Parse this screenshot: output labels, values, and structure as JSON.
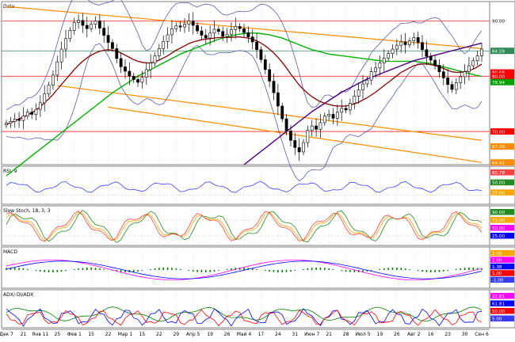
{
  "chart_data": {
    "type": "candlestick",
    "x_ticks": [
      "Дек 7",
      "21",
      "Янв 11",
      "25",
      "Фев 1",
      "15",
      "22",
      "Мар 1",
      "15",
      "22",
      "29",
      "Апр 5",
      "19",
      "26",
      "Май 4",
      "17",
      "24",
      "31",
      "Июн 7",
      "21",
      "28",
      "Июл 5",
      "19",
      "26",
      "Авг 2",
      "16",
      "23",
      "30",
      "Сен 6"
    ],
    "close_series": [
      71.5,
      71.8,
      72.2,
      72.0,
      72.8,
      73.5,
      73.1,
      74.0,
      75.2,
      76.8,
      78.4,
      80.2,
      82.6,
      84.9,
      86.8,
      88.3,
      89.7,
      90.1,
      89.2,
      88.6,
      89.4,
      90.0,
      88.7,
      87.4,
      86.1,
      85.0,
      83.2,
      81.7,
      80.9,
      80.0,
      79.4,
      78.9,
      79.8,
      81.2,
      82.4,
      83.7,
      85.0,
      86.3,
      87.5,
      88.6,
      89.1,
      88.9,
      89.4,
      90.0,
      89.2,
      88.2,
      87.4,
      86.9,
      87.8,
      88.5,
      88.1,
      87.2,
      87.6,
      88.4,
      89.0,
      88.6,
      87.9,
      87.1,
      86.2,
      84.8,
      83.0,
      81.2,
      79.1,
      77.0,
      74.6,
      72.3,
      70.1,
      68.4,
      67.1,
      66.3,
      68.0,
      70.2,
      71.0,
      70.4,
      71.6,
      72.8,
      73.1,
      72.4,
      73.5,
      74.2,
      73.9,
      75.1,
      76.4,
      77.5,
      78.6,
      79.3,
      80.8,
      81.5,
      82.4,
      83.3,
      84.1,
      84.9,
      85.6,
      86.2,
      85.7,
      86.4,
      87.0,
      86.1,
      84.8,
      83.6,
      82.9,
      82.0,
      80.8,
      79.7,
      78.5,
      77.6,
      78.8,
      79.9,
      80.8,
      81.9,
      82.8,
      83.7,
      84.9
    ],
    "series": [
      {
        "name": "",
        "values": [
          71.2,
          71.6,
          71.9,
          72.3,
          72.6,
          73.0,
          73.4,
          73.9,
          74.5,
          75.2,
          75.9,
          76.7,
          77.6,
          78.5,
          79.4,
          80.3,
          81.2,
          82.0,
          82.7,
          83.3,
          83.8,
          84.2,
          84.5,
          84.7,
          84.8,
          84.7,
          84.5,
          84.2,
          83.8,
          83.4,
          83.0,
          82.7,
          82.5,
          82.4,
          82.4,
          82.6,
          82.9,
          83.3,
          83.7,
          84.2,
          84.7,
          85.1,
          85.5,
          85.9,
          86.2,
          86.4,
          86.6,
          86.7,
          86.8,
          86.9,
          87.0,
          87.0,
          87.0,
          87.0,
          87.1,
          87.1,
          87.0,
          86.9,
          86.7,
          86.4,
          86.0,
          85.5,
          84.9,
          84.2,
          83.4,
          82.5,
          81.5,
          80.4,
          79.4,
          78.4,
          77.6,
          76.9,
          76.3,
          75.8,
          75.4,
          75.1,
          74.9,
          74.7,
          74.6,
          74.6,
          74.6,
          74.8,
          75.0,
          75.3,
          75.7,
          76.1,
          76.6,
          77.1,
          77.7,
          78.3,
          78.9,
          79.5,
          80.1,
          80.7,
          81.1,
          81.5,
          81.9,
          82.1,
          82.2,
          82.2,
          82.1,
          81.9,
          81.7,
          81.4,
          81.1,
          80.8,
          80.7,
          80.7,
          80.8,
          81.0,
          81.3,
          81.7,
          82.2
        ]
      },
      {
        "name": "",
        "values": [
          62.0,
          62.6,
          63.2,
          63.8,
          64.4,
          65.0,
          65.6,
          66.2,
          66.8,
          67.4,
          68.0,
          68.6,
          69.2,
          69.8,
          70.4,
          71.0,
          71.6,
          72.2,
          72.8,
          73.4,
          74.0,
          74.6,
          75.2,
          75.8,
          76.4,
          77.0,
          77.5,
          78.0,
          78.5,
          79.0,
          79.5,
          80.0,
          80.4,
          80.8,
          81.2,
          81.6,
          82.0,
          82.4,
          82.8,
          83.2,
          83.6,
          84.0,
          84.3,
          84.6,
          84.9,
          85.2,
          85.5,
          85.8,
          86.1,
          86.4,
          86.7,
          86.9,
          87.1,
          87.3,
          87.5,
          87.6,
          87.7,
          87.8,
          87.8,
          87.8,
          87.7,
          87.6,
          87.5,
          87.3,
          87.1,
          86.9,
          86.6,
          86.3,
          86.0,
          85.7,
          85.4,
          85.1,
          84.8,
          84.6,
          84.4,
          84.2,
          84.0,
          83.9,
          83.8,
          83.7,
          83.6,
          83.5,
          83.4,
          83.3,
          83.2,
          83.1,
          83.0,
          82.9,
          82.8,
          82.7,
          82.7,
          82.7,
          82.7,
          82.7,
          82.7,
          82.7,
          82.7,
          82.6,
          82.5,
          82.4,
          82.3,
          82.1,
          81.9,
          81.7,
          81.5,
          81.3,
          81.1,
          80.9,
          80.7,
          80.5,
          80.3,
          80.1,
          80.0
        ]
      },
      {
        "name": "",
        "values": [
          null,
          null,
          null,
          null,
          null,
          null,
          null,
          null,
          null,
          null,
          null,
          null,
          null,
          null,
          null,
          null,
          null,
          null,
          null,
          null,
          null,
          null,
          null,
          null,
          null,
          null,
          null,
          null,
          null,
          null,
          null,
          null,
          null,
          null,
          null,
          null,
          null,
          null,
          null,
          null,
          null,
          null,
          null,
          null,
          null,
          null,
          null,
          null,
          null,
          null,
          null,
          null,
          null,
          null,
          null,
          null,
          64.0,
          64.6,
          65.2,
          65.8,
          66.4,
          67.0,
          67.6,
          68.2,
          68.8,
          69.4,
          70.0,
          70.6,
          71.2,
          71.8,
          72.4,
          73.0,
          73.6,
          74.1,
          74.6,
          75.1,
          75.6,
          76.1,
          76.6,
          77.1,
          77.5,
          77.9,
          78.3,
          78.7,
          79.1,
          79.5,
          79.8,
          80.1,
          80.4,
          80.7,
          81.0,
          81.3,
          81.6,
          81.9,
          82.2,
          82.5,
          82.8,
          83.0,
          83.2,
          83.4,
          83.6,
          83.8,
          84.0,
          84.2,
          84.4,
          84.6,
          84.8,
          85.0,
          85.2,
          85.4,
          85.6,
          85.8,
          86.0
        ]
      }
    ],
    "price_axis": {
      "min": 64.0,
      "max": 93.5,
      "labels": [
        "90.00",
        "84.59",
        "80.68",
        "80.00",
        "78.94",
        "70.00",
        "67.29",
        "64.41"
      ]
    },
    "price_levels": [
      90.0,
      80.0,
      70.0,
      84.59
    ],
    "channel_lines": [
      {
        "from": [
          0,
          92.6
        ],
        "to": [
          112,
          85.0
        ]
      },
      {
        "from": [
          12,
          78.3
        ],
        "to": [
          112,
          68.4
        ]
      },
      {
        "from": [
          24,
          74.4
        ],
        "to": [
          112,
          64.4
        ]
      }
    ],
    "panels": [
      {
        "title": "Data"
      },
      {
        "title": "RSI, 9",
        "labels": [
          "60.78",
          "50.00",
          "25.00"
        ],
        "range": [
          0,
          100
        ]
      },
      {
        "title": "Slow Stoch, 18, 3, 3",
        "labels": [
          "90.00",
          "75.00",
          "50.00",
          "25.00"
        ],
        "range": [
          0,
          100
        ]
      },
      {
        "title": "MACD",
        "labels": [
          "2.00",
          "1.00",
          "1.38",
          "1.00",
          "-1.00"
        ],
        "range": [
          -3,
          3
        ]
      },
      {
        "title": "ADX/-DI/ADX",
        "labels": [
          "22.81",
          "61.81",
          "50.00",
          "5.00"
        ],
        "range": [
          0,
          100
        ]
      }
    ],
    "colors": {
      "candle": "#000000",
      "band": "#5b5bb5",
      "ma_short": "#8b0000",
      "ma_long": "#00b200",
      "ma_extra": "#4b0082",
      "channel": "#ff8c00",
      "level": "#ff0000",
      "level_green": "#2e8b57",
      "rsi": "#3a3aff",
      "stoch_k": "#ff4040",
      "stoch_d": "#228b22",
      "stoch_x": "#ffa500",
      "macd": "#ff00ff",
      "macd_signal": "#0000ff",
      "macd_hist": "#008000",
      "adx_a": "#ff0000",
      "adx_b": "#008000",
      "adx_c": "#0000ff"
    }
  }
}
